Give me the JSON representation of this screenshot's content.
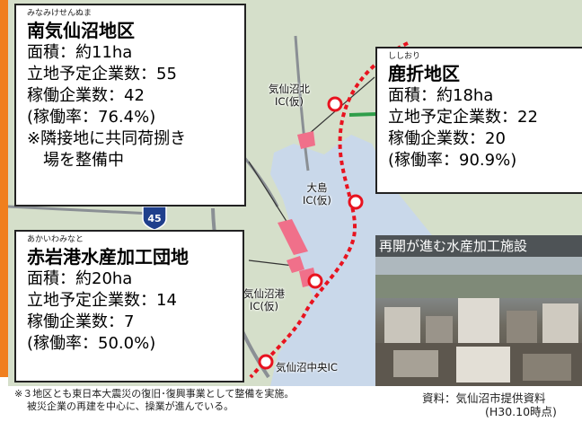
{
  "route_shield": "45",
  "ics": [
    {
      "name": "気仙沼北",
      "sub": "IC(仮)"
    },
    {
      "name": "大島",
      "sub": "IC(仮)"
    },
    {
      "name": "気仙沼港",
      "sub": "IC(仮)"
    },
    {
      "name": "気仙沼中央IC",
      "sub": ""
    }
  ],
  "areas": [
    {
      "reading": "みなみけせんぬま",
      "name": "南気仙沼地区",
      "lines": [
        "面積：約11ha",
        "立地予定企業数：55",
        "稼働企業数：42",
        "(稼働率：76.4%)",
        "※隣接地に共同荷捌き",
        "　場を整備中"
      ]
    },
    {
      "reading": "ししおり",
      "name": "鹿折地区",
      "lines": [
        "面積：約18ha",
        "立地予定企業数：22",
        "稼働企業数：20",
        "(稼働率：90.9%)"
      ]
    },
    {
      "reading": "あかいわみなと",
      "name": "赤岩港水産加工団地",
      "lines": [
        "面積：約20ha",
        "立地予定企業数：14",
        "稼働企業数：7",
        "(稼働率：50.0%)"
      ]
    }
  ],
  "photo_caption": "再開が進む水産加工施設",
  "footnote": {
    "line1": "※３地区とも東日本大震災の復旧･復興事業として整備を実施。",
    "line2": "被災企業の再建を中心に、操業が進んでいる。"
  },
  "source": {
    "line1": "資料：気仙沼市提供資料",
    "line2": "(H30.10時点)"
  },
  "colors": {
    "accent": "#f07f1e",
    "road": "#e8131f",
    "area_fill": "#f0708a",
    "sea": "#c6d6ea"
  }
}
